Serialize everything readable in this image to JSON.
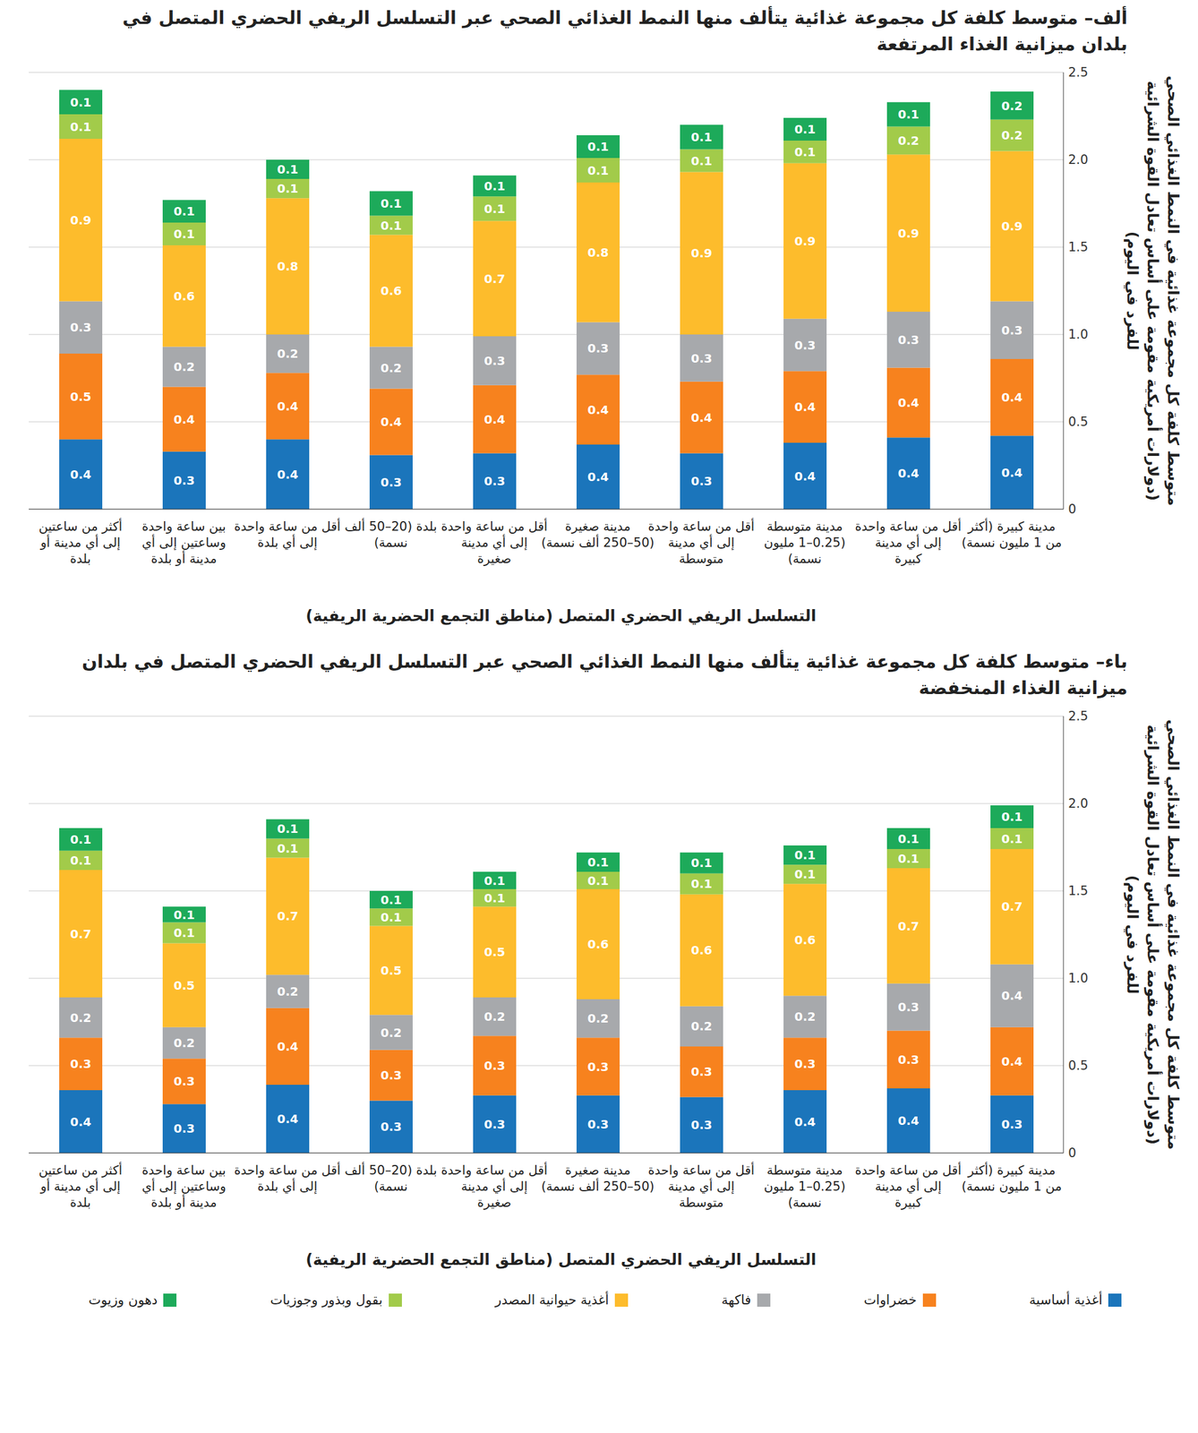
{
  "chart_data": [
    {
      "type": "bar",
      "stacked": true,
      "data_labels": true,
      "grid": true,
      "orientation": "vertical",
      "title": "ألف– متوسط كلفة كل مجموعة غذائية يتألف منها النمط الغذائي الصحي عبر التسلسل الريفي الحضري المتصل في بلدان ميزانية الغذاء المرتفعة",
      "x_label": "التسلسل الريفي الحضري المتصل (مناطق التجمع الحضرية الريفية)",
      "y_label": "متوسط كلفة كل مجموعة غذائية في النمط الغذائي الصحي (دولارات أمريكية مقومة على أساس تعادل القوة الشرائية للفرد في اليوم)",
      "categories": [
        "أكثر من ساعتين إلى أي مدينة أو بلدة",
        "بين ساعة واحدة وساعتين إلى أي مدينة أو بلدة",
        "أقل من ساعة واحدة إلى أي بلدة",
        "بلدة (20–50 ألف نسمة)",
        "أقل من ساعة واحدة إلى أي مدينة صغيرة",
        "مدينة صغيرة (50–250 ألف نسمة)",
        "أقل من ساعة واحدة إلى أي مدينة متوسطة",
        "مدينة متوسطة (0.25–1 مليون نسمة)",
        "أقل من ساعة واحدة إلى أي مدينة كبيرة",
        "مدينة كبيرة (أكثر من 1 مليون نسمة)"
      ],
      "ylim": [
        0,
        2.5
      ],
      "yticks": [
        0,
        0.5,
        {
          "value": 1,
          "label": "1.0"
        },
        1.5,
        {
          "value": 2,
          "label": "2.0"
        },
        2.5
      ],
      "series": [
        {
          "name": "أغذية أساسية",
          "color": "#1b75bb",
          "values": [
            0.4,
            0.33,
            0.4,
            0.31,
            0.32,
            0.37,
            0.32,
            0.38,
            0.41,
            0.42
          ],
          "value_labels": [
            "0.4",
            "0.3",
            "0.4",
            "0.3",
            "0.3",
            "0.4",
            "0.3",
            "0.4",
            "0.4",
            "0.4"
          ]
        },
        {
          "name": "خضراوات",
          "color": "#f7821e",
          "values": [
            0.49,
            0.37,
            0.38,
            0.38,
            0.39,
            0.4,
            0.41,
            0.41,
            0.4,
            0.44
          ],
          "value_labels": [
            "0.5",
            "0.4",
            "0.4",
            "0.4",
            "0.4",
            "0.4",
            "0.4",
            "0.4",
            "0.4",
            "0.4"
          ]
        },
        {
          "name": "فاكهة",
          "color": "#a7a9ac",
          "values": [
            0.3,
            0.23,
            0.22,
            0.24,
            0.28,
            0.3,
            0.27,
            0.3,
            0.32,
            0.33
          ],
          "value_labels": [
            "0.3",
            "0.2",
            "0.2",
            "0.2",
            "0.3",
            "0.3",
            "0.3",
            "0.3",
            "0.3",
            "0.3"
          ]
        },
        {
          "name": "أغذية حيوانية المصدر",
          "color": "#fdbc2c",
          "values": [
            0.93,
            0.58,
            0.78,
            0.64,
            0.66,
            0.8,
            0.93,
            0.89,
            0.9,
            0.86
          ],
          "value_labels": [
            "0.9",
            "0.6",
            "0.8",
            "0.6",
            "0.7",
            "0.8",
            "0.9",
            "0.9",
            "0.9",
            "0.9"
          ]
        },
        {
          "name": "بقول وبذور وجوزيات",
          "color": "#a2cb4a",
          "values": [
            0.14,
            0.13,
            0.11,
            0.11,
            0.14,
            0.14,
            0.13,
            0.13,
            0.16,
            0.18
          ],
          "value_labels": [
            "0.1",
            "0.1",
            "0.1",
            "0.1",
            "0.1",
            "0.1",
            "0.1",
            "0.1",
            "0.2",
            "0.2"
          ]
        },
        {
          "name": "دهون وزيوت",
          "color": "#1daa5a",
          "values": [
            0.14,
            0.13,
            0.11,
            0.14,
            0.12,
            0.13,
            0.14,
            0.13,
            0.14,
            0.16
          ],
          "value_labels": [
            "0.1",
            "0.1",
            "0.1",
            "0.1",
            "0.1",
            "0.1",
            "0.1",
            "0.1",
            "0.1",
            "0.2"
          ]
        }
      ]
    },
    {
      "type": "bar",
      "stacked": true,
      "data_labels": true,
      "grid": true,
      "orientation": "vertical",
      "legend": "bottom",
      "title": "باء– متوسط كلفة كل مجموعة غذائية يتألف منها النمط الغذائي الصحي عبر التسلسل الريفي الحضري المتصل في بلدان ميزانية الغذاء المنخفضة",
      "x_label": "التسلسل الريفي الحضري المتصل (مناطق التجمع الحضرية الريفية)",
      "y_label": "متوسط كلفة كل مجموعة غذائية في النمط الغذائي الصحي (دولارات أمريكية مقومة على أساس تعادل القوة الشرائية للفرد في اليوم)",
      "categories": [
        "أكثر من ساعتين إلى أي مدينة أو بلدة",
        "بين ساعة واحدة وساعتين إلى أي مدينة أو بلدة",
        "أقل من ساعة واحدة إلى أي بلدة",
        "بلدة (20–50 ألف نسمة)",
        "أقل من ساعة واحدة إلى أي مدينة صغيرة",
        "مدينة صغيرة (50–250 ألف نسمة)",
        "أقل من ساعة واحدة إلى أي مدينة متوسطة",
        "مدينة متوسطة (0.25–1 مليون نسمة)",
        "أقل من ساعة واحدة إلى أي مدينة كبيرة",
        "مدينة كبيرة (أكثر من 1 مليون نسمة)"
      ],
      "ylim": [
        0,
        2.5
      ],
      "yticks": [
        0,
        0.5,
        {
          "value": 1,
          "label": "1.0"
        },
        1.5,
        {
          "value": 2,
          "label": "2.0"
        },
        2.5
      ],
      "series": [
        {
          "name": "أغذية أساسية",
          "color": "#1b75bb",
          "values": [
            0.36,
            0.28,
            0.39,
            0.3,
            0.33,
            0.33,
            0.32,
            0.36,
            0.37,
            0.33
          ],
          "value_labels": [
            "0.4",
            "0.3",
            "0.4",
            "0.3",
            "0.3",
            "0.3",
            "0.3",
            "0.4",
            "0.4",
            "0.3"
          ]
        },
        {
          "name": "خضراوات",
          "color": "#f7821e",
          "values": [
            0.3,
            0.26,
            0.44,
            0.29,
            0.34,
            0.33,
            0.29,
            0.3,
            0.33,
            0.39
          ],
          "value_labels": [
            "0.3",
            "0.3",
            "0.4",
            "0.3",
            "0.3",
            "0.3",
            "0.3",
            "0.3",
            "0.3",
            "0.4"
          ]
        },
        {
          "name": "فاكهة",
          "color": "#a7a9ac",
          "values": [
            0.23,
            0.18,
            0.19,
            0.2,
            0.22,
            0.22,
            0.23,
            0.24,
            0.27,
            0.36
          ],
          "value_labels": [
            "0.2",
            "0.2",
            "0.2",
            "0.2",
            "0.2",
            "0.2",
            "0.2",
            "0.2",
            "0.3",
            "0.4"
          ]
        },
        {
          "name": "أغذية حيوانية المصدر",
          "color": "#fdbc2c",
          "values": [
            0.73,
            0.48,
            0.67,
            0.51,
            0.52,
            0.63,
            0.64,
            0.64,
            0.66,
            0.66
          ],
          "value_labels": [
            "0.7",
            "0.5",
            "0.7",
            "0.5",
            "0.5",
            "0.6",
            "0.6",
            "0.6",
            "0.7",
            "0.7"
          ]
        },
        {
          "name": "بقول وبذور وجوزيات",
          "color": "#a2cb4a",
          "values": [
            0.11,
            0.12,
            0.11,
            0.1,
            0.1,
            0.1,
            0.12,
            0.11,
            0.11,
            0.12
          ],
          "value_labels": [
            "0.1",
            "0.1",
            "0.1",
            "0.1",
            "0.1",
            "0.1",
            "0.1",
            "0.1",
            "0.1",
            "0.1"
          ]
        },
        {
          "name": "دهون وزيوت",
          "color": "#1daa5a",
          "values": [
            0.13,
            0.09,
            0.11,
            0.1,
            0.1,
            0.11,
            0.12,
            0.11,
            0.12,
            0.13
          ],
          "value_labels": [
            "0.1",
            "0.1",
            "0.1",
            "0.1",
            "0.1",
            "0.1",
            "0.1",
            "0.1",
            "0.1",
            "0.1"
          ]
        }
      ]
    }
  ]
}
